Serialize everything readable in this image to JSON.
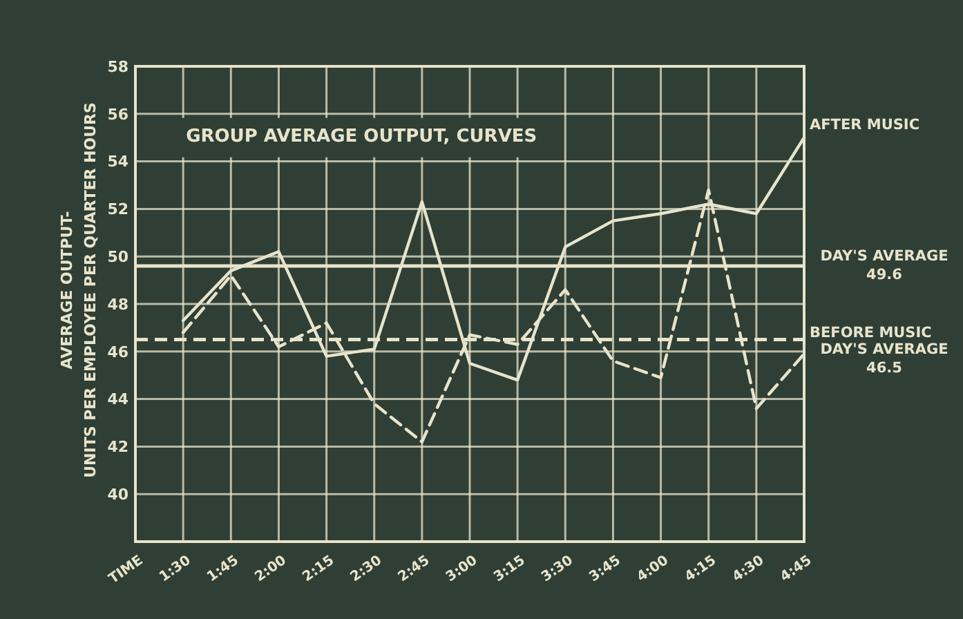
{
  "chart_data": {
    "type": "line",
    "title": "GROUP AVERAGE OUTPUT, CURVES",
    "xlabel": "TIME",
    "ylabel": "AVERAGE OUTPUT-\nUNITS PER EMPLOYEE PER QUARTER HOURS",
    "categories": [
      "1:30",
      "1:45",
      "2:00",
      "2:15",
      "2:30",
      "2:45",
      "3:00",
      "3:15",
      "3:30",
      "3:45",
      "4:00",
      "4:15",
      "4:30",
      "4:45"
    ],
    "series": [
      {
        "name": "AFTER MUSIC",
        "color": "#e8e4cc",
        "line_style": "solid",
        "values": [
          47.3,
          49.4,
          50.2,
          45.8,
          46.1,
          52.3,
          45.5,
          44.8,
          50.4,
          51.5,
          51.8,
          52.2,
          51.8,
          55.0
        ]
      },
      {
        "name": "BEFORE MUSIC",
        "color": "#e8e4cc",
        "line_style": "dashed",
        "values": [
          46.8,
          49.2,
          46.2,
          47.2,
          43.8,
          42.2,
          46.7,
          46.3,
          48.6,
          45.6,
          44.9,
          52.8,
          43.6,
          45.9
        ]
      }
    ],
    "ylim": [
      38,
      58
    ],
    "yticks": [
      40,
      42,
      44,
      46,
      48,
      50,
      52,
      54,
      56,
      58
    ],
    "ref_lines": [
      {
        "axis": "y",
        "value": 49.6,
        "label": "DAY'S AVERAGE 49.6",
        "color": "#e8e4cc",
        "line_style": "solid"
      },
      {
        "axis": "y",
        "value": 46.5,
        "label": "DAY'S AVERAGE 46.5",
        "color": "#e8e4cc",
        "line_style": "dashed"
      }
    ],
    "grid": true,
    "marker": "none"
  }
}
